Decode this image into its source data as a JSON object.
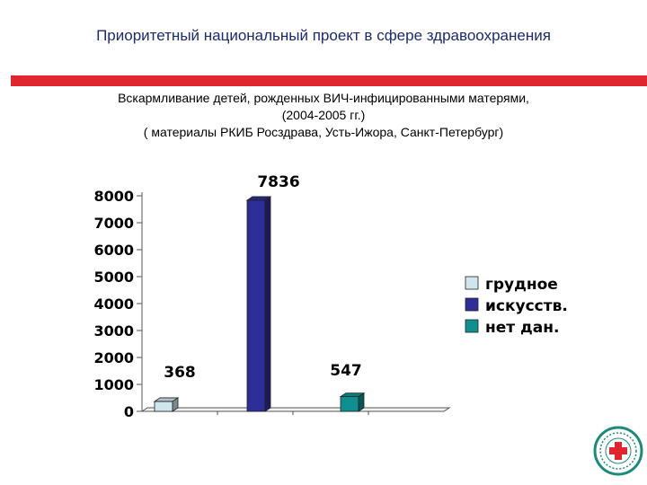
{
  "header": {
    "title": "Приоритетный национальный проект в сфере здравоохранения"
  },
  "subtitle": {
    "line1": "Вскармливание детей, рожденных ВИЧ-инфицированными матерями,",
    "line2": "(2004-2005 гг.)",
    "line3": "( материалы РКИБ Росздрава, Усть-Ижора, Санкт-Петербург)"
  },
  "chart_data": {
    "type": "bar",
    "title": "Вскармливание детей, рожденных ВИЧ-инфицированными матерями, (2004-2005 гг.)",
    "categories": [
      ""
    ],
    "series": [
      {
        "name": "грудное",
        "values": [
          368
        ],
        "color": "#cfe6ec"
      },
      {
        "name": "искусств.",
        "values": [
          7836
        ],
        "color": "#2e2e99"
      },
      {
        "name": "нет дан.",
        "values": [
          547
        ],
        "color": "#0f8f8f"
      }
    ],
    "data_labels": [
      "368",
      "7836",
      "547"
    ],
    "ylim": [
      0,
      8000
    ],
    "yticks": [
      0,
      1000,
      2000,
      3000,
      4000,
      5000,
      6000,
      7000,
      8000
    ],
    "grid": false,
    "legend": "right",
    "style": "3d-columns"
  },
  "logo": {
    "icon": "red-cross-emblem-icon"
  }
}
